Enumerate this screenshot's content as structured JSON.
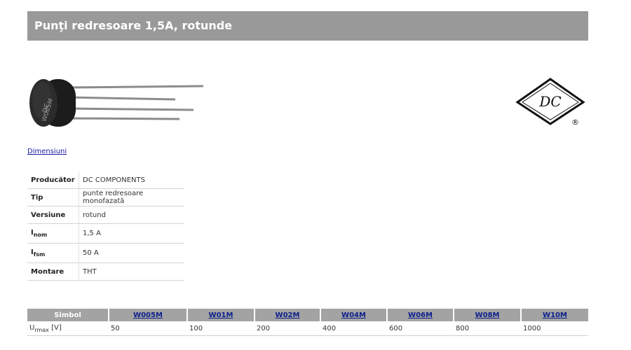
{
  "header": {
    "title": "Punţi redresoare 1,5A, rotunde"
  },
  "product": {
    "part_marking_line1": "DC",
    "part_marking_line2": "W005M"
  },
  "logo": {
    "monogram": "DC",
    "registered": "®"
  },
  "links": {
    "dimensions": "Dimensiuni"
  },
  "specs": [
    {
      "label": "Producător",
      "value": "DC COMPONENTS"
    },
    {
      "label": "Tip",
      "value": "punte redresoare monofazată"
    },
    {
      "label": "Versiune",
      "value": "rotund"
    },
    {
      "label_main": "I",
      "label_sub": "nom",
      "value": "1,5 A"
    },
    {
      "label_main": "I",
      "label_sub": "fsm",
      "value": "50 A"
    },
    {
      "label": "Montare",
      "value": "THT"
    }
  ],
  "symbol_table": {
    "header_label": "Simbol",
    "symbols": [
      "W005M",
      "W01M",
      "W02M",
      "W04M",
      "W06M",
      "W08M",
      "W10M"
    ],
    "row_label_main": "U",
    "row_label_sub": "rmax",
    "row_label_unit": " [V]",
    "values": [
      "50",
      "100",
      "200",
      "400",
      "600",
      "800",
      "1000"
    ]
  }
}
